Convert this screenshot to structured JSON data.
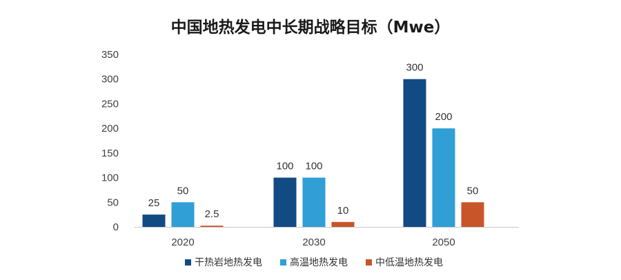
{
  "chart_data": {
    "type": "bar",
    "title": "中国地热发电中长期战略目标（Mwe）",
    "xlabel": "",
    "ylabel": "",
    "categories": [
      "2020",
      "2030",
      "2050"
    ],
    "ylim": [
      0,
      350
    ],
    "yticks": [
      0,
      50,
      100,
      150,
      200,
      250,
      300,
      350
    ],
    "grid": false,
    "legend_position": "bottom",
    "series": [
      {
        "name": "干热岩地热发电",
        "color": "#124a84",
        "values": [
          25,
          100,
          300
        ],
        "labels": [
          "25",
          "100",
          "300"
        ]
      },
      {
        "name": "高温地热发电",
        "color": "#2f9fd6",
        "values": [
          50,
          100,
          200
        ],
        "labels": [
          "50",
          "100",
          "200"
        ]
      },
      {
        "name": "中低温地热发电",
        "color": "#c8552a",
        "values": [
          2.5,
          10,
          50
        ],
        "labels": [
          "2.5",
          "10",
          "50"
        ]
      }
    ]
  }
}
